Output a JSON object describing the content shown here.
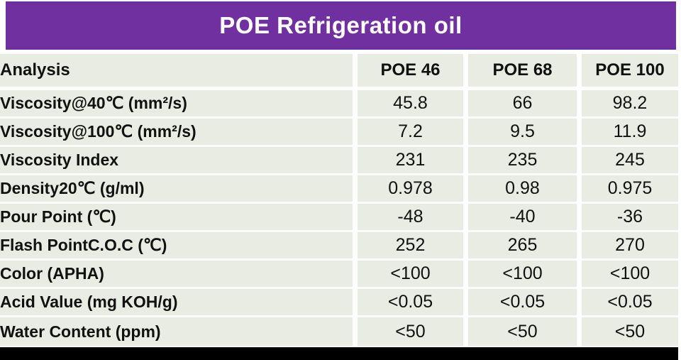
{
  "title": "POE Refrigeration oil",
  "colors": {
    "title_bar_bg": "#7030A0",
    "title_text": "#FFFFFF",
    "cell_bg": "#E9ECE2",
    "cell_text": "#111111",
    "separator": "#FFFFFF",
    "bottom_bar": "#000000"
  },
  "table": {
    "columns": [
      "Analysis",
      "POE 46",
      "POE 68",
      "POE 100"
    ],
    "rows": [
      {
        "label": "Viscosity@40℃ (mm²/s)",
        "values": [
          "45.8",
          "66",
          "98.2"
        ]
      },
      {
        "label": "Viscosity@100℃ (mm²/s)",
        "values": [
          "7.2",
          "9.5",
          "11.9"
        ]
      },
      {
        "label": "Viscosity Index",
        "values": [
          "231",
          "235",
          "245"
        ]
      },
      {
        "label": "Density20℃ (g/ml)",
        "values": [
          "0.978",
          "0.98",
          "0.975"
        ]
      },
      {
        "label": "Pour Point (℃)",
        "values": [
          "-48",
          "-40",
          "-36"
        ]
      },
      {
        "label": "Flash PointC.O.C (℃)",
        "values": [
          "252",
          "265",
          "270"
        ]
      },
      {
        "label": "Color (APHA)",
        "values": [
          "<100",
          "<100",
          "<100"
        ]
      },
      {
        "label": "Acid Value (mg KOH/g)",
        "values": [
          "<0.05",
          "<0.05",
          "<0.05"
        ]
      },
      {
        "label": "Water Content (ppm)",
        "values": [
          "<50",
          "<50",
          "<50"
        ]
      }
    ]
  }
}
